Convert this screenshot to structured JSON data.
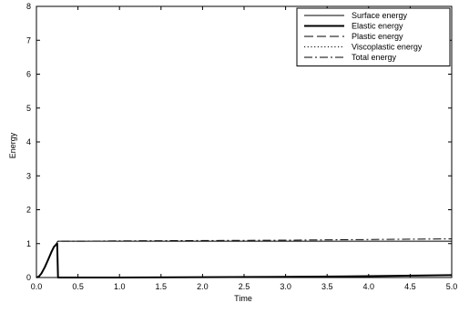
{
  "chart_data": {
    "type": "line",
    "title": "",
    "xlabel": "Time",
    "ylabel": "Energy",
    "xlim": [
      0,
      5
    ],
    "ylim": [
      0,
      8
    ],
    "xticks": [
      "0.0",
      "0.5",
      "1.0",
      "1.5",
      "2.0",
      "2.5",
      "3.0",
      "3.5",
      "4.0",
      "4.5",
      "5.0"
    ],
    "yticks": [
      "0",
      "1",
      "2",
      "3",
      "4",
      "5",
      "6",
      "7",
      "8"
    ],
    "grid": false,
    "legend_position": "top-right",
    "series": [
      {
        "name": "Surface energy",
        "style": "solid-thin",
        "x": [
          0.0,
          0.03,
          0.06,
          0.1,
          0.14,
          0.18,
          0.21,
          0.24,
          0.255,
          0.26,
          0.5,
          1.0,
          2.0,
          3.0,
          4.0,
          5.0
        ],
        "y": [
          0.0,
          0.03,
          0.12,
          0.3,
          0.52,
          0.75,
          0.9,
          1.0,
          1.06,
          1.07,
          1.07,
          1.07,
          1.07,
          1.07,
          1.07,
          1.07
        ]
      },
      {
        "name": "Elastic energy",
        "style": "solid-thick",
        "x": [
          0.0,
          0.03,
          0.06,
          0.1,
          0.14,
          0.18,
          0.21,
          0.24,
          0.25,
          0.26,
          0.27,
          1.0,
          2.0,
          3.0,
          4.0,
          5.0
        ],
        "y": [
          0.0,
          0.03,
          0.12,
          0.3,
          0.52,
          0.75,
          0.9,
          0.98,
          1.0,
          0.0,
          0.0,
          0.0,
          0.01,
          0.02,
          0.04,
          0.07
        ]
      },
      {
        "name": "Plastic energy",
        "style": "dashed",
        "x": [
          0.0,
          0.25,
          0.27,
          1.0,
          2.0,
          3.0,
          4.0,
          5.0
        ],
        "y": [
          0.0,
          0.0,
          0.0,
          0.0,
          0.0,
          0.0,
          0.0,
          0.0
        ]
      },
      {
        "name": "Viscoplastic energy",
        "style": "dotted",
        "x": [
          0.0,
          0.25,
          0.27,
          1.0,
          2.0,
          3.0,
          4.0,
          5.0
        ],
        "y": [
          0.0,
          0.0,
          0.0,
          0.0,
          0.0,
          0.0,
          0.0,
          0.0
        ]
      },
      {
        "name": "Total energy",
        "style": "dash-dot",
        "x": [
          0.0,
          0.03,
          0.06,
          0.1,
          0.14,
          0.18,
          0.21,
          0.24,
          0.255,
          0.26,
          0.5,
          1.0,
          2.0,
          3.0,
          4.0,
          5.0
        ],
        "y": [
          0.0,
          0.03,
          0.12,
          0.3,
          0.52,
          0.75,
          0.9,
          1.0,
          1.06,
          1.07,
          1.07,
          1.08,
          1.09,
          1.1,
          1.12,
          1.14
        ]
      }
    ]
  }
}
